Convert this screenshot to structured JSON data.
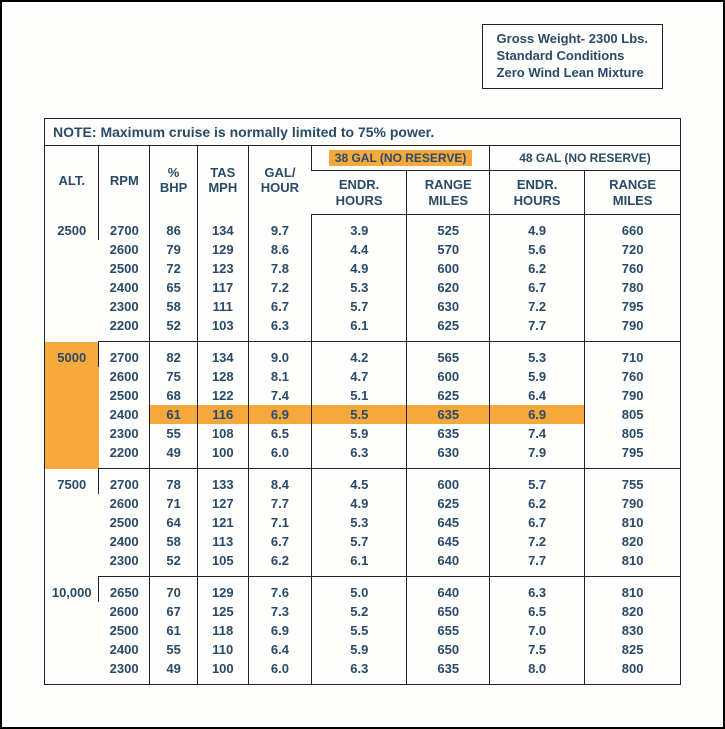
{
  "conditions": {
    "line1": "Gross Weight- 2300 Lbs.",
    "line2": "Standard Conditions",
    "line3": "Zero Wind  Lean Mixture"
  },
  "note": "NOTE:  Maximum cruise is normally limited to 75% power.",
  "headers": {
    "alt": "ALT.",
    "rpm": "RPM",
    "bhp1": "%",
    "bhp2": "BHP",
    "tas1": "TAS",
    "tas2": "MPH",
    "gal1": "GAL/",
    "gal2": "HOUR",
    "group38": "38 GAL (NO RESERVE)",
    "group48": "48 GAL (NO RESERVE)",
    "endr1": "ENDR.",
    "endr2": "HOURS",
    "range1": "RANGE",
    "range2": "MILES"
  },
  "blocks": [
    {
      "alt": "2500",
      "highlight_alt": false,
      "rows": [
        {
          "rpm": "2700",
          "bhp": "86",
          "tas": "134",
          "gal": "9.7",
          "e38": "3.9",
          "r38": "525",
          "e48": "4.9",
          "r48": "660",
          "hl": false
        },
        {
          "rpm": "2600",
          "bhp": "79",
          "tas": "129",
          "gal": "8.6",
          "e38": "4.4",
          "r38": "570",
          "e48": "5.6",
          "r48": "720",
          "hl": false
        },
        {
          "rpm": "2500",
          "bhp": "72",
          "tas": "123",
          "gal": "7.8",
          "e38": "4.9",
          "r38": "600",
          "e48": "6.2",
          "r48": "760",
          "hl": false
        },
        {
          "rpm": "2400",
          "bhp": "65",
          "tas": "117",
          "gal": "7.2",
          "e38": "5.3",
          "r38": "620",
          "e48": "6.7",
          "r48": "780",
          "hl": false
        },
        {
          "rpm": "2300",
          "bhp": "58",
          "tas": "111",
          "gal": "6.7",
          "e38": "5.7",
          "r38": "630",
          "e48": "7.2",
          "r48": "795",
          "hl": false
        },
        {
          "rpm": "2200",
          "bhp": "52",
          "tas": "103",
          "gal": "6.3",
          "e38": "6.1",
          "r38": "625",
          "e48": "7.7",
          "r48": "790",
          "hl": false
        }
      ]
    },
    {
      "alt": "5000",
      "highlight_alt": true,
      "rows": [
        {
          "rpm": "2700",
          "bhp": "82",
          "tas": "134",
          "gal": "9.0",
          "e38": "4.2",
          "r38": "565",
          "e48": "5.3",
          "r48": "710",
          "hl": false
        },
        {
          "rpm": "2600",
          "bhp": "75",
          "tas": "128",
          "gal": "8.1",
          "e38": "4.7",
          "r38": "600",
          "e48": "5.9",
          "r48": "760",
          "hl": false
        },
        {
          "rpm": "2500",
          "bhp": "68",
          "tas": "122",
          "gal": "7.4",
          "e38": "5.1",
          "r38": "625",
          "e48": "6.4",
          "r48": "790",
          "hl": false
        },
        {
          "rpm": "2400",
          "bhp": "61",
          "tas": "116",
          "gal": "6.9",
          "e38": "5.5",
          "r38": "635",
          "e48": "6.9",
          "r48": "805",
          "hl": true
        },
        {
          "rpm": "2300",
          "bhp": "55",
          "tas": "108",
          "gal": "6.5",
          "e38": "5.9",
          "r38": "635",
          "e48": "7.4",
          "r48": "805",
          "hl": false
        },
        {
          "rpm": "2200",
          "bhp": "49",
          "tas": "100",
          "gal": "6.0",
          "e38": "6.3",
          "r38": "630",
          "e48": "7.9",
          "r48": "795",
          "hl": false
        }
      ]
    },
    {
      "alt": "7500",
      "highlight_alt": false,
      "rows": [
        {
          "rpm": "2700",
          "bhp": "78",
          "tas": "133",
          "gal": "8.4",
          "e38": "4.5",
          "r38": "600",
          "e48": "5.7",
          "r48": "755",
          "hl": false
        },
        {
          "rpm": "2600",
          "bhp": "71",
          "tas": "127",
          "gal": "7.7",
          "e38": "4.9",
          "r38": "625",
          "e48": "6.2",
          "r48": "790",
          "hl": false
        },
        {
          "rpm": "2500",
          "bhp": "64",
          "tas": "121",
          "gal": "7.1",
          "e38": "5.3",
          "r38": "645",
          "e48": "6.7",
          "r48": "810",
          "hl": false
        },
        {
          "rpm": "2400",
          "bhp": "58",
          "tas": "113",
          "gal": "6.7",
          "e38": "5.7",
          "r38": "645",
          "e48": "7.2",
          "r48": "820",
          "hl": false
        },
        {
          "rpm": "2300",
          "bhp": "52",
          "tas": "105",
          "gal": "6.2",
          "e38": "6.1",
          "r38": "640",
          "e48": "7.7",
          "r48": "810",
          "hl": false
        }
      ]
    },
    {
      "alt": "10,000",
      "highlight_alt": false,
      "rows": [
        {
          "rpm": "2650",
          "bhp": "70",
          "tas": "129",
          "gal": "7.6",
          "e38": "5.0",
          "r38": "640",
          "e48": "6.3",
          "r48": "810",
          "hl": false
        },
        {
          "rpm": "2600",
          "bhp": "67",
          "tas": "125",
          "gal": "7.3",
          "e38": "5.2",
          "r38": "650",
          "e48": "6.5",
          "r48": "820",
          "hl": false
        },
        {
          "rpm": "2500",
          "bhp": "61",
          "tas": "118",
          "gal": "6.9",
          "e38": "5.5",
          "r38": "655",
          "e48": "7.0",
          "r48": "830",
          "hl": false
        },
        {
          "rpm": "2400",
          "bhp": "55",
          "tas": "110",
          "gal": "6.4",
          "e38": "5.9",
          "r38": "650",
          "e48": "7.5",
          "r48": "825",
          "hl": false
        },
        {
          "rpm": "2300",
          "bhp": "49",
          "tas": "100",
          "gal": "6.0",
          "e38": "6.3",
          "r38": "635",
          "e48": "8.0",
          "r48": "800",
          "hl": false
        }
      ]
    }
  ],
  "colors": {
    "highlight": "#f5a93d",
    "text": "#2a4a6a",
    "border": "#222222",
    "background": "#fefefc"
  }
}
